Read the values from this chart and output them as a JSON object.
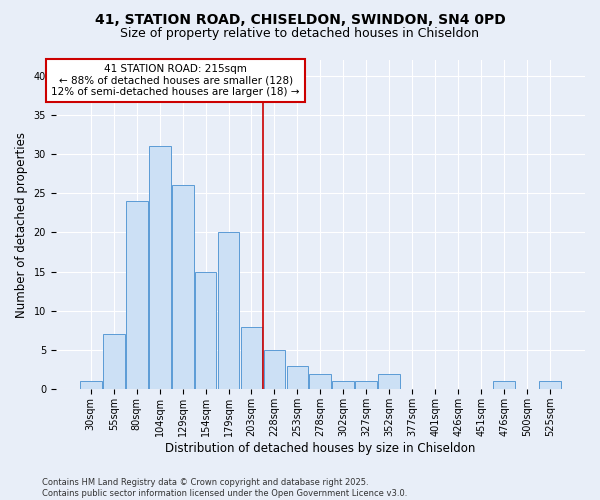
{
  "title1": "41, STATION ROAD, CHISELDON, SWINDON, SN4 0PD",
  "title2": "Size of property relative to detached houses in Chiseldon",
  "xlabel": "Distribution of detached houses by size in Chiseldon",
  "ylabel": "Number of detached properties",
  "categories": [
    "30sqm",
    "55sqm",
    "80sqm",
    "104sqm",
    "129sqm",
    "154sqm",
    "179sqm",
    "203sqm",
    "228sqm",
    "253sqm",
    "278sqm",
    "302sqm",
    "327sqm",
    "352sqm",
    "377sqm",
    "401sqm",
    "426sqm",
    "451sqm",
    "476sqm",
    "500sqm",
    "525sqm"
  ],
  "values": [
    1,
    7,
    24,
    31,
    26,
    15,
    20,
    8,
    5,
    3,
    2,
    1,
    1,
    2,
    0,
    0,
    0,
    0,
    1,
    0,
    1
  ],
  "bar_color": "#cce0f5",
  "bar_edge_color": "#5b9bd5",
  "vline_x": 7.5,
  "vline_color": "#cc0000",
  "annotation_title": "41 STATION ROAD: 215sqm",
  "annotation_line1": "← 88% of detached houses are smaller (128)",
  "annotation_line2": "12% of semi-detached houses are larger (18) →",
  "annotation_box_color": "#cc0000",
  "ylim": [
    0,
    42
  ],
  "yticks": [
    0,
    5,
    10,
    15,
    20,
    25,
    30,
    35,
    40
  ],
  "footer1": "Contains HM Land Registry data © Crown copyright and database right 2025.",
  "footer2": "Contains public sector information licensed under the Open Government Licence v3.0.",
  "background_color": "#e8eef8",
  "plot_bg_color": "#e8eef8",
  "grid_color": "#ffffff",
  "title_fontsize": 10,
  "subtitle_fontsize": 9,
  "tick_fontsize": 7,
  "label_fontsize": 8.5,
  "footer_fontsize": 6
}
